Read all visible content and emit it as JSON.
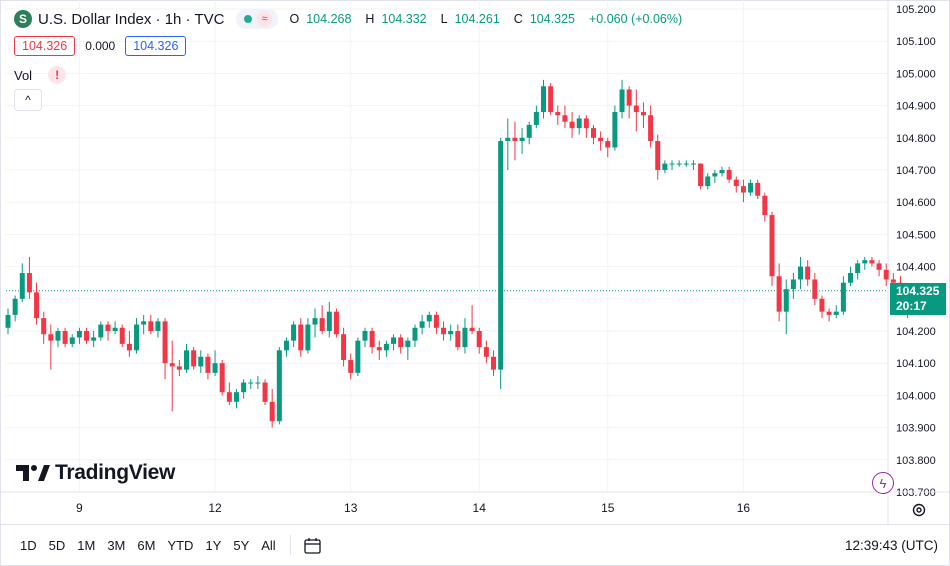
{
  "header": {
    "symbol_logo": "S",
    "title": "U.S. Dollar Index · 1h · TVC",
    "approx_glyph": "≈",
    "ohlc": {
      "o_label": "O",
      "o_value": "104.268",
      "h_label": "H",
      "h_value": "104.332",
      "l_label": "L",
      "l_value": "104.261",
      "c_label": "C",
      "c_value": "104.325",
      "change": "+0.060 (+0.06%)"
    },
    "bid": "104.326",
    "spread": "0.000",
    "ask": "104.326",
    "vol_label": "Vol",
    "warning_glyph": "!",
    "collapse_glyph": "^"
  },
  "watermark": {
    "text": "TradingView"
  },
  "price_tag": {
    "value": "104.325",
    "countdown": "20:17"
  },
  "toolbar": {
    "ranges": [
      "1D",
      "5D",
      "1M",
      "3M",
      "6M",
      "YTD",
      "1Y",
      "5Y",
      "All"
    ],
    "clock": "12:39:43 (UTC)"
  },
  "icons": {
    "calendar": "calendar-range-icon",
    "gear": "gear-icon",
    "flash": "flash-icon"
  },
  "colors": {
    "up": "#089981",
    "down": "#f23645",
    "grid": "#f0f3fa",
    "last_line": "#089981"
  },
  "chart_data": {
    "type": "candlestick",
    "title": "U.S. Dollar Index · 1h · TVC",
    "y_ticks": [
      "105.200",
      "105.100",
      "105.000",
      "104.900",
      "104.800",
      "104.700",
      "104.600",
      "104.500",
      "104.400",
      "104.300",
      "104.200",
      "104.100",
      "104.000",
      "103.900",
      "103.800",
      "103.700"
    ],
    "ylim": [
      103.7,
      105.2
    ],
    "x_ticks": [
      {
        "label": "9",
        "index": 10
      },
      {
        "label": "12",
        "index": 29
      },
      {
        "label": "13",
        "index": 48
      },
      {
        "label": "14",
        "index": 66
      },
      {
        "label": "15",
        "index": 84
      },
      {
        "label": "16",
        "index": 103
      }
    ],
    "last_price": 104.325,
    "series": [
      {
        "name": "",
        "candles": [
          [
            104.21,
            104.27,
            104.19,
            104.25
          ],
          [
            104.25,
            104.31,
            104.23,
            104.3
          ],
          [
            104.3,
            104.41,
            104.29,
            104.38
          ],
          [
            104.38,
            104.43,
            104.3,
            104.32
          ],
          [
            104.32,
            104.35,
            104.22,
            104.24
          ],
          [
            104.24,
            104.26,
            104.16,
            104.19
          ],
          [
            104.19,
            104.22,
            104.08,
            104.17
          ],
          [
            104.17,
            104.21,
            104.15,
            104.2
          ],
          [
            104.2,
            104.21,
            104.15,
            104.16
          ],
          [
            104.16,
            104.19,
            104.15,
            104.18
          ],
          [
            104.18,
            104.21,
            104.16,
            104.2
          ],
          [
            104.2,
            104.21,
            104.16,
            104.17
          ],
          [
            104.17,
            104.2,
            104.15,
            104.18
          ],
          [
            104.18,
            104.23,
            104.17,
            104.22
          ],
          [
            104.22,
            104.23,
            104.17,
            104.2
          ],
          [
            104.2,
            104.23,
            104.19,
            104.21
          ],
          [
            104.21,
            104.22,
            104.15,
            104.16
          ],
          [
            104.16,
            104.2,
            104.12,
            104.14
          ],
          [
            104.14,
            104.24,
            104.13,
            104.22
          ],
          [
            104.22,
            104.25,
            104.19,
            104.23
          ],
          [
            104.23,
            104.25,
            104.19,
            104.2
          ],
          [
            104.2,
            104.24,
            104.18,
            104.23
          ],
          [
            104.23,
            104.24,
            104.05,
            104.1
          ],
          [
            104.1,
            104.17,
            103.95,
            104.09
          ],
          [
            104.09,
            104.11,
            104.06,
            104.08
          ],
          [
            104.08,
            104.16,
            104.07,
            104.14
          ],
          [
            104.14,
            104.15,
            104.08,
            104.09
          ],
          [
            104.09,
            104.14,
            104.07,
            104.12
          ],
          [
            104.12,
            104.13,
            104.05,
            104.07
          ],
          [
            104.07,
            104.14,
            104.06,
            104.1
          ],
          [
            104.1,
            104.11,
            104.0,
            104.01
          ],
          [
            104.01,
            104.04,
            103.97,
            103.98
          ],
          [
            103.98,
            104.02,
            103.96,
            104.01
          ],
          [
            104.01,
            104.05,
            103.99,
            104.04
          ],
          [
            104.04,
            104.05,
            104.02,
            104.04
          ],
          [
            104.04,
            104.06,
            104.02,
            104.04
          ],
          [
            104.04,
            104.05,
            103.97,
            103.98
          ],
          [
            103.98,
            104.02,
            103.9,
            103.92
          ],
          [
            103.92,
            104.15,
            103.91,
            104.14
          ],
          [
            104.14,
            104.18,
            104.12,
            104.17
          ],
          [
            104.17,
            104.23,
            104.15,
            104.22
          ],
          [
            104.22,
            104.24,
            104.12,
            104.14
          ],
          [
            104.14,
            104.24,
            104.13,
            104.22
          ],
          [
            104.22,
            104.27,
            104.18,
            104.24
          ],
          [
            104.24,
            104.28,
            104.19,
            104.2
          ],
          [
            104.2,
            104.29,
            104.18,
            104.26
          ],
          [
            104.26,
            104.27,
            104.18,
            104.19
          ],
          [
            104.19,
            104.21,
            104.09,
            104.11
          ],
          [
            104.11,
            104.13,
            104.05,
            104.07
          ],
          [
            104.07,
            104.18,
            104.06,
            104.17
          ],
          [
            104.17,
            104.21,
            104.15,
            104.2
          ],
          [
            104.2,
            104.21,
            104.13,
            104.15
          ],
          [
            104.15,
            104.17,
            104.11,
            104.14
          ],
          [
            104.14,
            104.17,
            104.12,
            104.16
          ],
          [
            104.16,
            104.19,
            104.14,
            104.18
          ],
          [
            104.18,
            104.19,
            104.13,
            104.15
          ],
          [
            104.15,
            104.18,
            104.11,
            104.17
          ],
          [
            104.17,
            104.22,
            104.15,
            104.21
          ],
          [
            104.21,
            104.25,
            104.19,
            104.23
          ],
          [
            104.23,
            104.26,
            104.21,
            104.25
          ],
          [
            104.25,
            104.26,
            104.19,
            104.21
          ],
          [
            104.21,
            104.23,
            104.17,
            104.19
          ],
          [
            104.19,
            104.22,
            104.17,
            104.2
          ],
          [
            104.2,
            104.22,
            104.14,
            104.15
          ],
          [
            104.15,
            104.24,
            104.13,
            104.21
          ],
          [
            104.21,
            104.28,
            104.19,
            104.2
          ],
          [
            104.2,
            104.21,
            104.13,
            104.15
          ],
          [
            104.15,
            104.17,
            104.1,
            104.12
          ],
          [
            104.12,
            104.14,
            104.06,
            104.08
          ],
          [
            104.08,
            104.8,
            104.02,
            104.79
          ],
          [
            104.79,
            104.86,
            104.7,
            104.8
          ],
          [
            104.8,
            104.85,
            104.73,
            104.79
          ],
          [
            104.79,
            104.83,
            104.75,
            104.8
          ],
          [
            104.8,
            104.85,
            104.78,
            104.84
          ],
          [
            104.84,
            104.9,
            104.83,
            104.88
          ],
          [
            104.88,
            104.98,
            104.86,
            104.96
          ],
          [
            104.96,
            104.97,
            104.87,
            104.88
          ],
          [
            104.88,
            104.9,
            104.84,
            104.87
          ],
          [
            104.87,
            104.9,
            104.83,
            104.85
          ],
          [
            104.85,
            104.88,
            104.8,
            104.83
          ],
          [
            104.83,
            104.87,
            104.81,
            104.86
          ],
          [
            104.86,
            104.87,
            104.8,
            104.83
          ],
          [
            104.83,
            104.84,
            104.78,
            104.8
          ],
          [
            104.8,
            104.82,
            104.76,
            104.79
          ],
          [
            104.79,
            104.8,
            104.74,
            104.77
          ],
          [
            104.77,
            104.9,
            104.76,
            104.88
          ],
          [
            104.88,
            104.98,
            104.86,
            104.95
          ],
          [
            104.95,
            104.96,
            104.86,
            104.9
          ],
          [
            104.9,
            104.95,
            104.82,
            104.88
          ],
          [
            104.88,
            104.91,
            104.83,
            104.87
          ],
          [
            104.87,
            104.9,
            104.77,
            104.79
          ],
          [
            104.79,
            104.81,
            104.67,
            104.7
          ],
          [
            104.7,
            104.73,
            104.69,
            104.72
          ],
          [
            104.72,
            104.73,
            104.7,
            104.72
          ],
          [
            104.72,
            104.73,
            104.71,
            104.72
          ],
          [
            104.72,
            104.73,
            104.71,
            104.72
          ],
          [
            104.72,
            104.73,
            104.7,
            104.72
          ],
          [
            104.72,
            104.72,
            104.64,
            104.65
          ],
          [
            104.65,
            104.69,
            104.64,
            104.68
          ],
          [
            104.68,
            104.7,
            104.66,
            104.69
          ],
          [
            104.69,
            104.71,
            104.68,
            104.7
          ],
          [
            104.7,
            104.71,
            104.66,
            104.67
          ],
          [
            104.67,
            104.68,
            104.63,
            104.65
          ],
          [
            104.65,
            104.67,
            104.6,
            104.63
          ],
          [
            104.63,
            104.67,
            104.62,
            104.66
          ],
          [
            104.66,
            104.67,
            104.61,
            104.62
          ],
          [
            104.62,
            104.63,
            104.54,
            104.56
          ],
          [
            104.56,
            104.57,
            104.34,
            104.37
          ],
          [
            104.37,
            104.41,
            104.23,
            104.26
          ],
          [
            104.26,
            104.36,
            104.19,
            104.33
          ],
          [
            104.33,
            104.38,
            104.3,
            104.36
          ],
          [
            104.36,
            104.43,
            104.33,
            104.4
          ],
          [
            104.4,
            104.42,
            104.34,
            104.36
          ],
          [
            104.36,
            104.38,
            104.28,
            104.3
          ],
          [
            104.3,
            104.31,
            104.24,
            104.26
          ],
          [
            104.26,
            104.27,
            104.23,
            104.25
          ],
          [
            104.25,
            104.28,
            104.24,
            104.26
          ],
          [
            104.26,
            104.37,
            104.25,
            104.35
          ],
          [
            104.35,
            104.4,
            104.34,
            104.38
          ],
          [
            104.38,
            104.42,
            104.36,
            104.41
          ],
          [
            104.41,
            104.43,
            104.39,
            104.42
          ],
          [
            104.42,
            104.43,
            104.4,
            104.41
          ],
          [
            104.41,
            104.42,
            104.37,
            104.39
          ],
          [
            104.39,
            104.41,
            104.34,
            104.36
          ],
          [
            104.36,
            104.38,
            104.33,
            104.35
          ],
          [
            104.35,
            104.37,
            104.3,
            104.31
          ],
          [
            104.31,
            104.32,
            104.24,
            104.26
          ],
          [
            104.268,
            104.332,
            104.261,
            104.325
          ]
        ]
      }
    ]
  }
}
